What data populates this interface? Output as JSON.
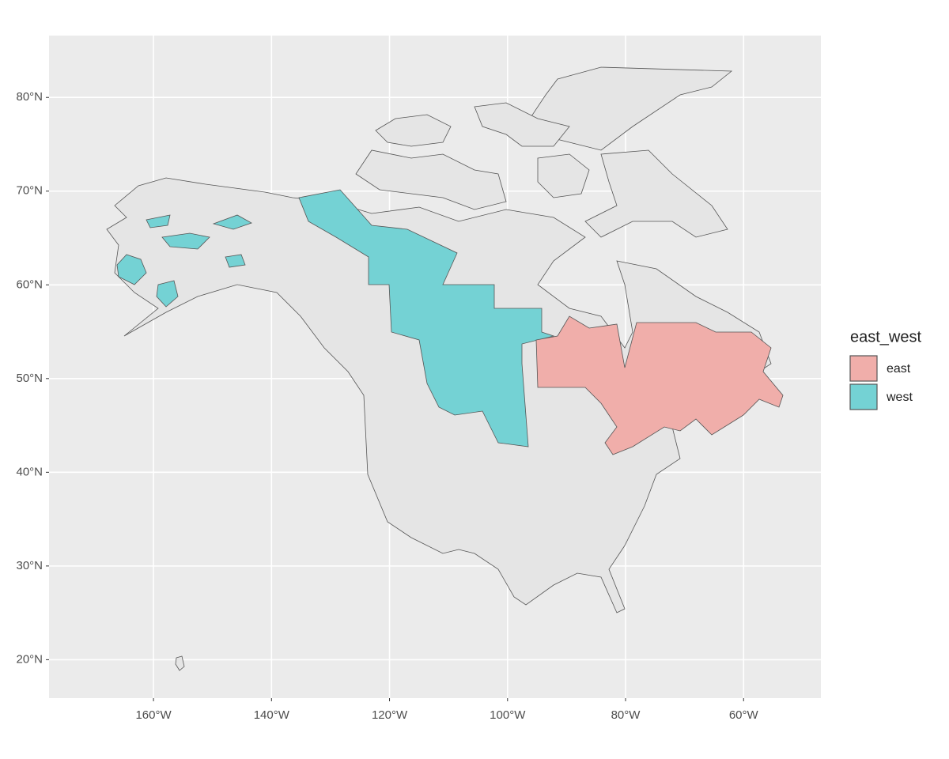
{
  "chart_data": {
    "type": "map",
    "xlim": [
      -177.7,
      -46.9
    ],
    "ylim": [
      15.9,
      86.6
    ],
    "xticks": [
      {
        "value": -160,
        "label": "160°W"
      },
      {
        "value": -140,
        "label": "140°W"
      },
      {
        "value": -120,
        "label": "120°W"
      },
      {
        "value": -100,
        "label": "100°W"
      },
      {
        "value": -80,
        "label": "80°W"
      },
      {
        "value": -60,
        "label": "60°W"
      }
    ],
    "yticks": [
      {
        "value": 20,
        "label": "20°N"
      },
      {
        "value": 30,
        "label": "30°N"
      },
      {
        "value": 40,
        "label": "40°N"
      },
      {
        "value": 50,
        "label": "50°N"
      },
      {
        "value": 60,
        "label": "60°N"
      },
      {
        "value": 70,
        "label": "70°N"
      },
      {
        "value": 80,
        "label": "80°N"
      }
    ],
    "grid": true,
    "legend": {
      "title": "east_west",
      "items": [
        {
          "name": "east",
          "color": "#f0aeaa"
        },
        {
          "name": "west",
          "color": "#74d2d4"
        }
      ]
    }
  }
}
